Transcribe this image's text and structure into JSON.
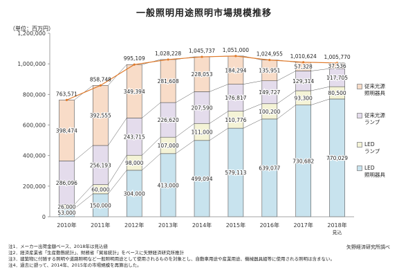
{
  "chart_data": {
    "type": "bar",
    "stacked": true,
    "title": "一般照明用途照明市場規模推移",
    "unit_label": "（単位：百万円）",
    "categories": [
      "2010年",
      "2011年",
      "2012年",
      "2013年",
      "2014年",
      "2015年",
      "2016年",
      "2017年",
      "2018年"
    ],
    "category_sublabels": [
      "",
      "",
      "",
      "",
      "",
      "",
      "",
      "",
      "見込"
    ],
    "ylim": [
      0,
      1200000
    ],
    "yticks": [
      0,
      200000,
      400000,
      600000,
      800000,
      1000000,
      1200000
    ],
    "ytick_labels": [
      "0",
      "200,000",
      "400,000",
      "600,000",
      "800,000",
      "1,000,000",
      "1,200,000"
    ],
    "grid": false,
    "legend_position": "right",
    "series": [
      {
        "name": "LED照明器具",
        "color": "#c8e3ee",
        "values": [
          53000,
          150000,
          304000,
          413000,
          499094,
          579113,
          639077,
          730682,
          770029
        ],
        "labels": [
          "53,000",
          "150,000",
          "304,000",
          "413,000",
          "499,094",
          "579,113",
          "639,077",
          "730,682",
          "770,029"
        ]
      },
      {
        "name": "LEDランプ",
        "color": "#f4f3d6",
        "values": [
          26000,
          60000,
          98000,
          107000,
          111000,
          110776,
          100200,
          93300,
          80500
        ],
        "labels": [
          "26,000",
          "60,000",
          "98,000",
          "107,000",
          "111,000",
          "110,776",
          "100,200",
          "93,300",
          "80,500"
        ]
      },
      {
        "name": "従来光源ランプ",
        "color": "#e4dcec",
        "values": [
          286096,
          256193,
          243715,
          226620,
          207590,
          176817,
          149727,
          129314,
          117705
        ],
        "labels": [
          "286,096",
          "256,193",
          "243,715",
          "226,620",
          "207,590",
          "176,817",
          "149,727",
          "129,314",
          "117,705"
        ]
      },
      {
        "name": "従来光源照明器具",
        "color": "#f8dcc8",
        "values": [
          398474,
          392555,
          349394,
          281608,
          228053,
          184294,
          135951,
          57328,
          37536
        ],
        "labels": [
          "398,474",
          "392,555",
          "349,394",
          "281,608",
          "228,053",
          "184,294",
          "135,951",
          "57,328",
          "37,536"
        ]
      }
    ],
    "totals": [
      763571,
      858748,
      995109,
      1028228,
      1045737,
      1051000,
      1024955,
      1010624,
      1005770
    ],
    "total_labels": [
      "763,571",
      "858,748",
      "995,109",
      "1,028,228",
      "1,045,737",
      "1,051,000",
      "1,024,955",
      "1,010,624",
      "1,005,770"
    ]
  },
  "legend": [
    {
      "label": "従来光源\n照明器具",
      "color": "#f8dcc8",
      "series_index": 3
    },
    {
      "label": "従来光源\nランプ",
      "color": "#e4dcec",
      "series_index": 2
    },
    {
      "label": "LED\nランプ",
      "color": "#f4f3d6",
      "series_index": 1
    },
    {
      "label": "LED\n照明器具",
      "color": "#c8e3ee",
      "series_index": 0
    }
  ],
  "notes": [
    "注1．メーカー出荷金額ベース、2018年は見込値",
    "注2．経済産業省「生産動態統計」、財務省「貿易統計」をベースに矢野経済研究所推計",
    "注3．建築物に付随する照明や道路照明など一般照明用途として使用されるものを対象とし、自動車用途や産業用途、機械器具組等に使用される照明は含まない。",
    "注4．過去に遡って、2014年、2015年の市場規模を再算出した。"
  ],
  "source": "矢野経済研究所調べ",
  "colors": {
    "axis": "#888888",
    "segment_stroke": "#555555",
    "total_line": "#e07a2a"
  }
}
